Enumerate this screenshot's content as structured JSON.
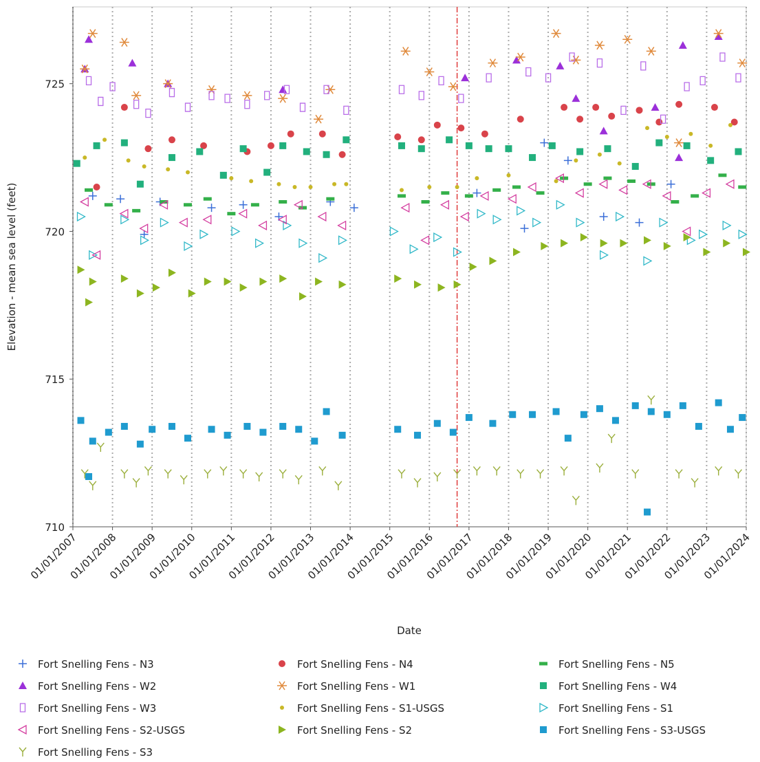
{
  "chart_data": {
    "type": "scatter",
    "xlabel": "Date",
    "ylabel": "Elevation - mean sea level (feet)",
    "xlim": [
      2007,
      2024
    ],
    "ylim": [
      710,
      727.6
    ],
    "xticks": [
      {
        "value": 2007,
        "label": "01/01/2007"
      },
      {
        "value": 2008,
        "label": "01/01/2008"
      },
      {
        "value": 2009,
        "label": "01/01/2009"
      },
      {
        "value": 2010,
        "label": "01/01/2010"
      },
      {
        "value": 2011,
        "label": "01/01/2011"
      },
      {
        "value": 2012,
        "label": "01/01/2012"
      },
      {
        "value": 2013,
        "label": "01/01/2013"
      },
      {
        "value": 2014,
        "label": "01/01/2014"
      },
      {
        "value": 2015,
        "label": "01/01/2015"
      },
      {
        "value": 2016,
        "label": "01/01/2016"
      },
      {
        "value": 2017,
        "label": "01/01/2017"
      },
      {
        "value": 2018,
        "label": "01/01/2018"
      },
      {
        "value": 2019,
        "label": "01/01/2019"
      },
      {
        "value": 2020,
        "label": "01/01/2020"
      },
      {
        "value": 2021,
        "label": "01/01/2021"
      },
      {
        "value": 2022,
        "label": "01/01/2022"
      },
      {
        "value": 2023,
        "label": "01/01/2023"
      },
      {
        "value": 2024,
        "label": "01/01/2024"
      }
    ],
    "yticks": [
      710,
      715,
      720,
      725
    ],
    "xgrid": true,
    "reference_line": {
      "x": 2016.7,
      "color": "#e03c3c"
    },
    "series": [
      {
        "name": "Fort Snelling Fens - N3",
        "color": "#3b6fd8",
        "marker": "plus",
        "x": [
          2007.5,
          2008.2,
          2008.8,
          2009.2,
          2010.5,
          2011.3,
          2012.2,
          2013.5,
          2014.1,
          2017.2,
          2018.4,
          2018.9,
          2019.5,
          2020.4,
          2021.3,
          2022.1
        ],
        "values": [
          721.2,
          721.1,
          719.9,
          721,
          720.8,
          720.9,
          720.5,
          721,
          720.8,
          721.3,
          720.1,
          723.0,
          722.4,
          720.5,
          720.3,
          721.6
        ]
      },
      {
        "name": "Fort Snelling Fens - N4",
        "color": "#d9434a",
        "marker": "circle",
        "x": [
          2007.6,
          2008.3,
          2008.9,
          2009.5,
          2010.3,
          2011.4,
          2012.0,
          2012.5,
          2013.3,
          2013.8,
          2015.2,
          2015.8,
          2016.2,
          2016.8,
          2017.4,
          2018.3,
          2019.4,
          2019.8,
          2020.2,
          2020.6,
          2021.3,
          2021.8,
          2022.3,
          2023.2,
          2023.7
        ],
        "values": [
          721.5,
          724.2,
          722.8,
          723.1,
          722.9,
          722.7,
          722.9,
          723.3,
          723.3,
          722.6,
          723.2,
          723.1,
          723.6,
          723.5,
          723.3,
          723.8,
          724.2,
          723.8,
          724.2,
          723.9,
          724.1,
          723.7,
          724.3,
          724.2,
          723.7
        ]
      },
      {
        "name": "Fort Snelling Fens - N5",
        "color": "#34b04a",
        "marker": "dash",
        "x": [
          2007.4,
          2007.9,
          2008.6,
          2009.3,
          2009.9,
          2010.4,
          2011.0,
          2011.6,
          2012.3,
          2012.8,
          2013.5,
          2015.3,
          2015.9,
          2016.4,
          2017.0,
          2017.7,
          2018.2,
          2018.8,
          2019.4,
          2020.0,
          2020.5,
          2021.1,
          2021.6,
          2022.2,
          2022.7,
          2023.4,
          2023.9
        ],
        "values": [
          721.4,
          720.9,
          720.7,
          721.0,
          720.9,
          721.1,
          720.6,
          720.9,
          721.0,
          720.8,
          721.1,
          721.2,
          721.0,
          721.3,
          721.2,
          721.4,
          721.5,
          721.3,
          721.8,
          721.6,
          721.8,
          721.7,
          721.6,
          721.0,
          721.2,
          721.9,
          721.5
        ]
      },
      {
        "name": "Fort Snelling Fens - W2",
        "color": "#9b30d9",
        "marker": "triangle",
        "x": [
          2007.3,
          2007.4,
          2008.5,
          2009.4,
          2012.3,
          2016.9,
          2018.2,
          2019.3,
          2019.7,
          2020.4,
          2021.7,
          2022.3,
          2022.4,
          2023.3
        ],
        "values": [
          725.5,
          726.5,
          725.7,
          725,
          724.8,
          725.2,
          725.8,
          725.6,
          724.5,
          723.4,
          724.2,
          722.5,
          726.3,
          726.6
        ]
      },
      {
        "name": "Fort Snelling Fens - W1",
        "color": "#e08a3c",
        "marker": "asterisk",
        "x": [
          2007.3,
          2007.5,
          2008.3,
          2008.6,
          2009.4,
          2010.5,
          2011.4,
          2012.3,
          2013.2,
          2013.5,
          2015.4,
          2016.0,
          2016.6,
          2017.6,
          2018.3,
          2019.2,
          2019.7,
          2020.3,
          2021.0,
          2021.6,
          2022.3,
          2023.3,
          2023.9
        ],
        "values": [
          725.5,
          726.7,
          726.4,
          724.6,
          725,
          724.8,
          724.6,
          724.5,
          723.8,
          724.8,
          726.1,
          725.4,
          724.9,
          725.7,
          725.9,
          726.7,
          725.8,
          726.3,
          726.5,
          726.1,
          723,
          726.7,
          725.7
        ]
      },
      {
        "name": "Fort Snelling Fens - W4",
        "color": "#22b07d",
        "marker": "square",
        "x": [
          2007.1,
          2007.6,
          2008.3,
          2008.7,
          2009.5,
          2010.2,
          2010.8,
          2011.3,
          2011.9,
          2012.3,
          2012.9,
          2013.4,
          2013.9,
          2015.3,
          2015.8,
          2016.5,
          2017.0,
          2017.5,
          2018.0,
          2018.6,
          2019.1,
          2019.8,
          2020.5,
          2021.2,
          2021.8,
          2022.5,
          2023.1,
          2023.8
        ],
        "values": [
          722.3,
          722.9,
          723,
          721.6,
          722.5,
          722.7,
          721.9,
          722.8,
          722,
          722.9,
          722.7,
          722.6,
          723.1,
          722.9,
          722.8,
          723.1,
          722.9,
          722.8,
          722.8,
          722.5,
          722.9,
          722.7,
          722.8,
          722.2,
          723,
          722.9,
          722.4,
          722.7
        ]
      },
      {
        "name": "Fort Snelling Fens - W3",
        "color": "#b86ce8",
        "marker": "openrect",
        "x": [
          2007.4,
          2007.7,
          2008.0,
          2008.6,
          2008.9,
          2009.5,
          2009.9,
          2010.5,
          2010.9,
          2011.4,
          2011.9,
          2012.4,
          2012.8,
          2013.4,
          2013.9,
          2015.3,
          2015.8,
          2016.3,
          2016.8,
          2017.5,
          2018.5,
          2019.0,
          2019.6,
          2020.3,
          2020.9,
          2021.4,
          2021.9,
          2022.5,
          2022.9,
          2023.4,
          2023.8
        ],
        "values": [
          725.1,
          724.4,
          724.9,
          724.3,
          724.0,
          724.7,
          724.2,
          724.6,
          724.5,
          724.3,
          724.6,
          724.8,
          724.2,
          724.8,
          724.1,
          724.8,
          724.6,
          725.1,
          724.5,
          725.2,
          725.4,
          725.2,
          725.9,
          725.7,
          724.1,
          725.6,
          723.8,
          724.9,
          725.1,
          725.9,
          725.2
        ]
      },
      {
        "name": "Fort Snelling Fens - S1-USGS",
        "color": "#c9b827",
        "marker": "dot",
        "x": [
          2007.3,
          2007.8,
          2008.4,
          2008.8,
          2009.4,
          2009.9,
          2011.0,
          2011.5,
          2012.2,
          2012.6,
          2013.0,
          2013.6,
          2013.9,
          2015.3,
          2016.0,
          2016.7,
          2017.2,
          2018.0,
          2019.2,
          2019.7,
          2020.3,
          2020.8,
          2021.5,
          2022.0,
          2022.6,
          2023.1,
          2023.6
        ],
        "values": [
          722.5,
          723.1,
          722.4,
          722.2,
          722.1,
          722.0,
          721.8,
          721.7,
          721.6,
          721.5,
          721.5,
          721.6,
          721.6,
          721.4,
          721.5,
          721.5,
          721.8,
          721.9,
          721.7,
          722.4,
          722.6,
          722.3,
          723.5,
          723.2,
          723.3,
          722.9,
          723.6
        ]
      },
      {
        "name": "Fort Snelling Fens - S1",
        "color": "#30b8c8",
        "marker": "openright",
        "x": [
          2007.2,
          2007.5,
          2008.3,
          2008.8,
          2009.3,
          2009.9,
          2010.3,
          2011.1,
          2011.7,
          2012.4,
          2012.8,
          2013.3,
          2013.8,
          2015.1,
          2015.6,
          2016.2,
          2016.7,
          2017.3,
          2017.7,
          2018.3,
          2018.7,
          2019.3,
          2019.8,
          2020.4,
          2020.8,
          2021.5,
          2021.9,
          2022.6,
          2022.9,
          2023.5,
          2023.9
        ],
        "values": [
          720.5,
          719.2,
          720.4,
          719.7,
          720.3,
          719.5,
          719.9,
          720,
          719.6,
          720.2,
          719.6,
          719.1,
          719.7,
          720,
          719.4,
          719.8,
          719.3,
          720.6,
          720.4,
          720.7,
          720.3,
          720.9,
          720.3,
          719.2,
          720.5,
          719,
          720.3,
          719.7,
          719.9,
          720.2,
          719.9
        ]
      },
      {
        "name": "Fort Snelling Fens - S2-USGS",
        "color": "#d43ea0",
        "marker": "openleft",
        "x": [
          2007.3,
          2007.6,
          2008.3,
          2008.8,
          2009.3,
          2009.8,
          2010.4,
          2011.3,
          2011.8,
          2012.3,
          2012.7,
          2013.3,
          2013.8,
          2015.4,
          2015.9,
          2016.4,
          2016.9,
          2017.4,
          2018.1,
          2018.6,
          2019.3,
          2019.8,
          2020.4,
          2020.9,
          2021.5,
          2022.0,
          2022.5,
          2023.0,
          2023.6
        ],
        "values": [
          721,
          719.2,
          720.6,
          720.1,
          720.9,
          720.3,
          720.4,
          720.6,
          720.2,
          720.4,
          720.9,
          720.5,
          720.2,
          720.8,
          719.7,
          720.9,
          720.5,
          721.2,
          721.1,
          721.5,
          721.8,
          721.3,
          721.6,
          721.4,
          721.6,
          721.2,
          720,
          721.3,
          721.6
        ]
      },
      {
        "name": "Fort Snelling Fens - S2",
        "color": "#8db520",
        "marker": "right",
        "x": [
          2007.2,
          2007.4,
          2007.5,
          2008.3,
          2008.7,
          2009.1,
          2009.5,
          2010.0,
          2010.4,
          2010.9,
          2011.3,
          2011.8,
          2012.3,
          2012.8,
          2013.2,
          2013.8,
          2015.2,
          2015.7,
          2016.3,
          2016.7,
          2017.1,
          2017.6,
          2018.2,
          2018.9,
          2019.4,
          2019.9,
          2020.4,
          2020.9,
          2021.5,
          2022.0,
          2022.5,
          2023.0,
          2023.5,
          2024.0
        ],
        "values": [
          718.7,
          717.6,
          718.3,
          718.4,
          717.9,
          718.1,
          718.6,
          717.9,
          718.3,
          718.3,
          718.1,
          718.3,
          718.4,
          717.8,
          718.3,
          718.2,
          718.4,
          718.2,
          718.1,
          718.2,
          718.8,
          719.0,
          719.3,
          719.5,
          719.6,
          719.8,
          719.6,
          719.6,
          719.7,
          719.5,
          719.8,
          719.3,
          719.6,
          719.3
        ]
      },
      {
        "name": "Fort Snelling Fens - S3-USGS",
        "color": "#1f9bcf",
        "marker": "square",
        "x": [
          2007.2,
          2007.4,
          2007.5,
          2007.9,
          2008.3,
          2008.7,
          2009.0,
          2009.5,
          2009.9,
          2010.5,
          2010.9,
          2011.4,
          2011.8,
          2012.3,
          2012.7,
          2013.1,
          2013.4,
          2013.8,
          2015.2,
          2015.7,
          2016.2,
          2016.6,
          2017.0,
          2017.6,
          2018.1,
          2018.6,
          2019.2,
          2019.5,
          2019.9,
          2020.3,
          2020.7,
          2021.2,
          2021.5,
          2021.6,
          2022.0,
          2022.4,
          2022.8,
          2023.3,
          2023.6,
          2023.9
        ],
        "values": [
          713.6,
          711.7,
          712.9,
          713.2,
          713.4,
          712.8,
          713.3,
          713.4,
          713.0,
          713.3,
          713.1,
          713.4,
          713.2,
          713.4,
          713.3,
          712.9,
          713.9,
          713.1,
          713.3,
          713.1,
          713.5,
          713.2,
          713.7,
          713.5,
          713.8,
          713.8,
          713.9,
          713.0,
          713.8,
          714.0,
          713.6,
          714.1,
          710.5,
          713.9,
          713.8,
          714.1,
          713.4,
          714.2,
          713.3,
          713.7
        ]
      },
      {
        "name": "Fort Snelling Fens - S3",
        "color": "#9aae3a",
        "marker": "y",
        "x": [
          2007.3,
          2007.5,
          2007.7,
          2008.3,
          2008.6,
          2008.9,
          2009.4,
          2009.8,
          2010.4,
          2010.8,
          2011.3,
          2011.7,
          2012.3,
          2012.7,
          2013.3,
          2013.7,
          2015.3,
          2015.7,
          2016.2,
          2016.7,
          2017.2,
          2017.7,
          2018.3,
          2018.8,
          2019.4,
          2019.7,
          2020.3,
          2020.6,
          2021.2,
          2021.6,
          2022.3,
          2022.7,
          2023.3,
          2023.8
        ],
        "values": [
          711.8,
          711.4,
          712.7,
          711.8,
          711.5,
          711.9,
          711.8,
          711.6,
          711.8,
          711.9,
          711.8,
          711.7,
          711.8,
          711.6,
          711.9,
          711.4,
          711.8,
          711.5,
          711.7,
          711.8,
          711.9,
          711.9,
          711.8,
          711.8,
          711.9,
          710.9,
          712.0,
          713.0,
          711.8,
          714.3,
          711.8,
          711.5,
          711.9,
          711.8
        ]
      }
    ]
  }
}
